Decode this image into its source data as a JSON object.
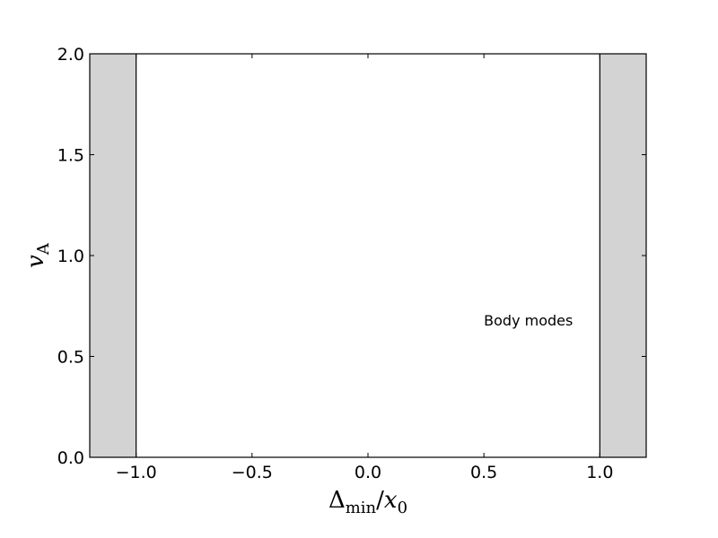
{
  "chart_data": {
    "type": "area",
    "title": "",
    "xlabel": {
      "main": "Δ",
      "sub": "min",
      "slash": "/",
      "var": "x",
      "var_sub": "0"
    },
    "ylabel": {
      "main": "v",
      "sub": "A"
    },
    "xlim": [
      -1.2,
      1.2
    ],
    "ylim": [
      0.0,
      2.0
    ],
    "xticks": [
      -1.0,
      -0.5,
      0.0,
      0.5,
      1.0
    ],
    "xtick_labels": [
      "−1.0",
      "−0.5",
      "0.0",
      "0.5",
      "1.0"
    ],
    "yticks": [
      0.0,
      0.5,
      1.0,
      1.5,
      2.0
    ],
    "ytick_labels": [
      "0.0",
      "0.5",
      "1.0",
      "1.5",
      "2.0"
    ],
    "shaded_regions": [
      {
        "x": [
          -1.2,
          -1.0
        ],
        "color": "#d3d3d3"
      },
      {
        "x": [
          1.0,
          1.2
        ],
        "color": "#d3d3d3"
      }
    ],
    "vlines": [
      -1.0,
      1.0
    ],
    "annotations": [
      {
        "text": "Body modes",
        "x": 0.5,
        "y": 0.68
      }
    ],
    "grid": false,
    "legend": "none"
  }
}
